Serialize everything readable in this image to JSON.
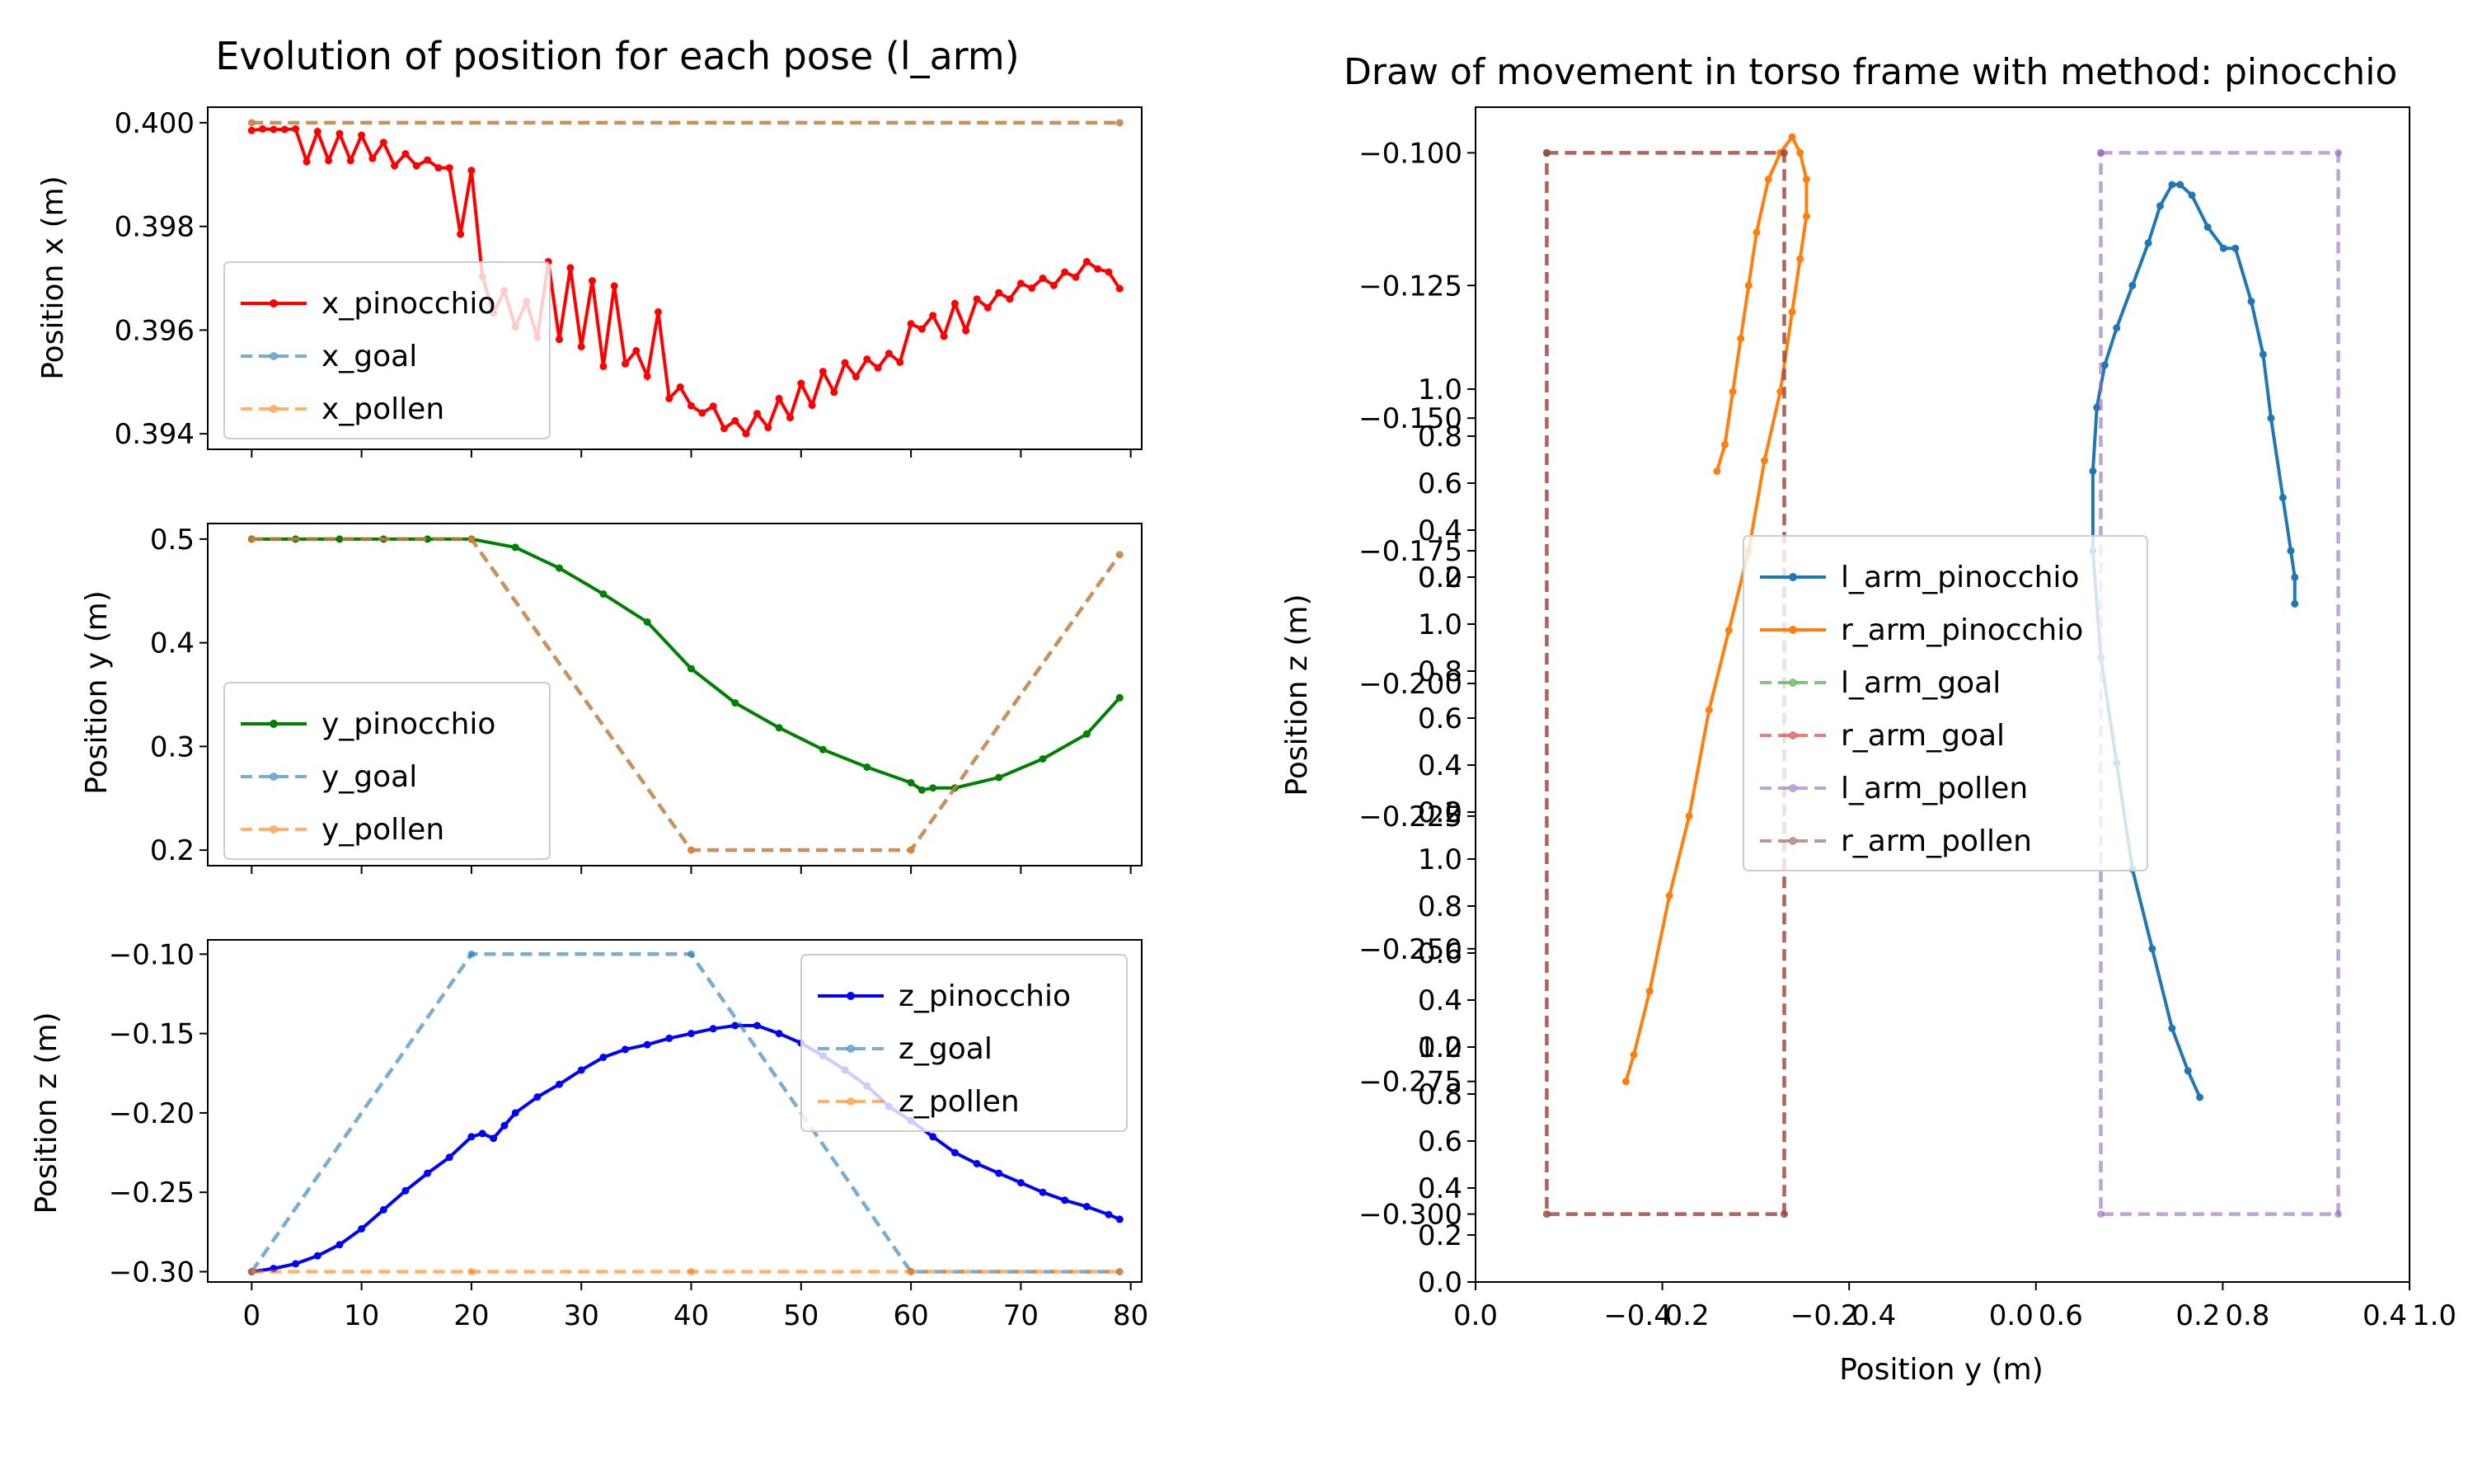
{
  "chart_data": [
    {
      "type": "line",
      "title": "Evolution of position for each pose (l_arm)",
      "xlabel": "",
      "ylabel": "Position x (m)",
      "xlim": [
        -4,
        81
      ],
      "ylim": [
        0.3937,
        0.4003
      ],
      "xticks": [],
      "yticks": [
        {
          "v": 0.4,
          "label": "0.400"
        },
        {
          "v": 0.398,
          "label": "0.398"
        },
        {
          "v": 0.396,
          "label": "0.396"
        },
        {
          "v": 0.394,
          "label": "0.394"
        }
      ],
      "legend": {
        "position": "center-left"
      },
      "series": [
        {
          "name": "x_pinocchio",
          "color": "#ff0000",
          "style": "solid",
          "x": [
            0,
            1,
            2,
            3,
            4,
            5,
            6,
            7,
            8,
            9,
            10,
            11,
            12,
            13,
            14,
            15,
            16,
            17,
            18,
            19,
            20,
            21,
            22,
            23,
            24,
            25,
            26,
            27,
            28,
            29,
            30,
            31,
            32,
            33,
            34,
            35,
            36,
            37,
            38,
            39,
            40,
            41,
            42,
            43,
            44,
            45,
            46,
            47,
            48,
            49,
            50,
            51,
            52,
            53,
            54,
            55,
            56,
            57,
            58,
            59,
            60,
            61,
            62,
            63,
            64,
            65,
            66,
            67,
            68,
            69,
            70,
            71,
            72,
            73,
            74,
            75,
            76,
            77,
            78,
            79
          ],
          "y": [
            0.39985,
            0.39988,
            0.39987,
            0.39987,
            0.39988,
            0.39925,
            0.39983,
            0.39927,
            0.39979,
            0.39927,
            0.39976,
            0.39931,
            0.39962,
            0.39917,
            0.3994,
            0.39917,
            0.39928,
            0.39913,
            0.39913,
            0.39785,
            0.39908,
            0.39703,
            0.39633,
            0.39676,
            0.39606,
            0.39655,
            0.39586,
            0.39732,
            0.39582,
            0.3972,
            0.39568,
            0.39695,
            0.3953,
            0.39685,
            0.39535,
            0.3956,
            0.39511,
            0.39635,
            0.39468,
            0.3949,
            0.39454,
            0.3944,
            0.39453,
            0.3941,
            0.39425,
            0.394,
            0.39439,
            0.39412,
            0.39468,
            0.39431,
            0.39497,
            0.39455,
            0.3952,
            0.3948,
            0.39537,
            0.3951,
            0.39544,
            0.39527,
            0.39555,
            0.39538,
            0.39612,
            0.39602,
            0.39628,
            0.39588,
            0.39651,
            0.39599,
            0.3966,
            0.39643,
            0.39672,
            0.3966,
            0.3969,
            0.39681,
            0.397,
            0.39686,
            0.39712,
            0.39702,
            0.39732,
            0.39718,
            0.39712,
            0.3968
          ]
        },
        {
          "name": "x_goal",
          "color": "#1f77b4",
          "style": "dashed",
          "x": [
            0,
            79
          ],
          "y": [
            0.4,
            0.4
          ]
        },
        {
          "name": "x_pollen",
          "color": "#ff7f0e",
          "style": "dashed",
          "x": [
            0,
            79
          ],
          "y": [
            0.4,
            0.4
          ]
        }
      ]
    },
    {
      "type": "line",
      "title": "",
      "xlabel": "",
      "ylabel": "Position y (m)",
      "xlim": [
        -4,
        81
      ],
      "ylim": [
        0.185,
        0.515
      ],
      "xticks": [],
      "yticks": [
        {
          "v": 0.5,
          "label": "0.5"
        },
        {
          "v": 0.4,
          "label": "0.4"
        },
        {
          "v": 0.3,
          "label": "0.3"
        },
        {
          "v": 0.2,
          "label": "0.2"
        }
      ],
      "legend": {
        "position": "lower-left"
      },
      "series": [
        {
          "name": "y_pinocchio",
          "color": "#008000",
          "style": "solid",
          "x": [
            0,
            4,
            8,
            12,
            16,
            20,
            24,
            28,
            32,
            36,
            40,
            44,
            48,
            52,
            56,
            60,
            61,
            62,
            64,
            68,
            72,
            76,
            79
          ],
          "y": [
            0.5,
            0.5,
            0.5,
            0.5,
            0.5,
            0.5,
            0.492,
            0.472,
            0.447,
            0.42,
            0.375,
            0.342,
            0.318,
            0.297,
            0.28,
            0.265,
            0.258,
            0.26,
            0.26,
            0.27,
            0.288,
            0.312,
            0.347
          ]
        },
        {
          "name": "y_goal",
          "color": "#1f77b4",
          "style": "dashed",
          "x": [
            0,
            20,
            40,
            60,
            79
          ],
          "y": [
            0.5,
            0.5,
            0.2,
            0.2,
            0.485
          ]
        },
        {
          "name": "y_pollen",
          "color": "#ff7f0e",
          "style": "dashed",
          "x": [
            0,
            20,
            40,
            60,
            79
          ],
          "y": [
            0.5,
            0.5,
            0.2,
            0.2,
            0.485
          ]
        }
      ]
    },
    {
      "type": "line",
      "title": "",
      "xlabel": "",
      "ylabel": "Position z (m)",
      "xlim": [
        -4,
        81
      ],
      "ylim": [
        -0.3065,
        -0.091
      ],
      "xticks": [
        {
          "v": 0,
          "label": "0"
        },
        {
          "v": 10,
          "label": "10"
        },
        {
          "v": 20,
          "label": "20"
        },
        {
          "v": 30,
          "label": "30"
        },
        {
          "v": 40,
          "label": "40"
        },
        {
          "v": 50,
          "label": "50"
        },
        {
          "v": 60,
          "label": "60"
        },
        {
          "v": 70,
          "label": "70"
        },
        {
          "v": 80,
          "label": "80"
        }
      ],
      "yticks": [
        {
          "v": -0.1,
          "label": "−0.10"
        },
        {
          "v": -0.15,
          "label": "−0.15"
        },
        {
          "v": -0.2,
          "label": "−0.20"
        },
        {
          "v": -0.25,
          "label": "−0.25"
        },
        {
          "v": -0.3,
          "label": "−0.30"
        }
      ],
      "legend": {
        "position": "upper-right"
      },
      "series": [
        {
          "name": "z_pinocchio",
          "color": "#0000ff",
          "style": "solid",
          "x": [
            0,
            2,
            4,
            6,
            8,
            10,
            12,
            14,
            16,
            18,
            20,
            21,
            22,
            23,
            24,
            26,
            28,
            30,
            32,
            34,
            36,
            38,
            40,
            42,
            44,
            46,
            48,
            50,
            52,
            54,
            56,
            58,
            60,
            62,
            64,
            66,
            68,
            70,
            72,
            74,
            76,
            78,
            79
          ],
          "y": [
            -0.3,
            -0.298,
            -0.295,
            -0.29,
            -0.283,
            -0.273,
            -0.261,
            -0.249,
            -0.238,
            -0.228,
            -0.215,
            -0.213,
            -0.216,
            -0.208,
            -0.2,
            -0.19,
            -0.182,
            -0.173,
            -0.165,
            -0.16,
            -0.157,
            -0.153,
            -0.15,
            -0.147,
            -0.145,
            -0.145,
            -0.15,
            -0.156,
            -0.164,
            -0.173,
            -0.183,
            -0.196,
            -0.205,
            -0.215,
            -0.225,
            -0.232,
            -0.238,
            -0.244,
            -0.25,
            -0.255,
            -0.259,
            -0.264,
            -0.267
          ]
        },
        {
          "name": "z_goal",
          "color": "#1f77b4",
          "style": "dashed",
          "x": [
            0,
            20,
            40,
            60,
            79
          ],
          "y": [
            -0.3,
            -0.1,
            -0.1,
            -0.3,
            -0.3
          ]
        },
        {
          "name": "z_pollen",
          "color": "#ff7f0e",
          "style": "dashed",
          "x": [
            0,
            20,
            40,
            60,
            79
          ],
          "y": [
            -0.3,
            -0.3,
            -0.3,
            -0.3,
            -0.3
          ]
        }
      ]
    },
    {
      "type": "line",
      "title": "Draw of movement in torso frame with method: pinocchio",
      "xlabel": "Position y (m)",
      "ylabel": "Position z (m)",
      "xlim": [
        -0.59,
        0.59
      ],
      "ylim": [
        -0.3128,
        -0.0914
      ],
      "xticks": [
        {
          "u": 0.0,
          "label": "0.0"
        },
        {
          "u": 0.2,
          "label": "−0.4"
        },
        {
          "u": 0.2,
          "label": "0.2"
        },
        {
          "u": 0.4,
          "label": "−0.2"
        },
        {
          "u": 0.4,
          "label": "0.4"
        },
        {
          "u": 0.6,
          "label": "0.0"
        },
        {
          "u": 0.6,
          "label": "0.6"
        },
        {
          "u": 0.8,
          "label": "0.2"
        },
        {
          "u": 0.8,
          "label": "0.8"
        },
        {
          "u": 1.0,
          "label": "0.4"
        },
        {
          "u": 1.0,
          "label": "1.0"
        }
      ],
      "yticks": [
        {
          "v": -0.1,
          "label": "−0.100"
        },
        {
          "v": -0.125,
          "label": "−0.125"
        },
        {
          "v": -0.15,
          "label": "−0.150"
        },
        {
          "v": -0.175,
          "label": "−0.175"
        },
        {
          "v": -0.2,
          "label": "−0.200"
        },
        {
          "v": -0.225,
          "label": "−0.225"
        },
        {
          "v": -0.25,
          "label": "−0.250"
        },
        {
          "v": -0.275,
          "label": "−0.275"
        },
        {
          "v": -0.3,
          "label": "−0.300"
        }
      ],
      "overlay_yticks": [
        {
          "u": 0.0,
          "label": "0.0"
        },
        {
          "u": 0.2,
          "label": "0.2"
        },
        {
          "u": 0.4,
          "label": "0.4"
        },
        {
          "u": 0.6,
          "label": "0.6"
        },
        {
          "u": 0.8,
          "label": "0.8"
        },
        {
          "u": 1.0,
          "label": "1.0"
        },
        {
          "u": 1.2,
          "label": "0.2"
        },
        {
          "u": 1.4,
          "label": "0.4"
        },
        {
          "u": 1.6,
          "label": "0.6"
        },
        {
          "u": 1.8,
          "label": "0.8"
        },
        {
          "u": 2.0,
          "label": "1.0"
        },
        {
          "u": 2.0,
          "label": "0.0"
        },
        {
          "u": 2.2,
          "label": "0.2"
        },
        {
          "u": 2.4,
          "label": "0.4"
        },
        {
          "u": 2.6,
          "label": "0.6"
        },
        {
          "u": 2.8,
          "label": "0.8"
        },
        {
          "u": 3.0,
          "label": "1.0"
        },
        {
          "u": 3.2,
          "label": "0.0"
        },
        {
          "u": 3.4,
          "label": "0.2"
        },
        {
          "u": 3.6,
          "label": "0.4"
        },
        {
          "u": 3.8,
          "label": "0.6"
        },
        {
          "u": 4.0,
          "label": "0.8"
        },
        {
          "u": 4.2,
          "label": "1.0"
        }
      ],
      "legend": {
        "position": "center"
      },
      "series": [
        {
          "name": "l_arm_pinocchio",
          "color": "#1f77b4",
          "style": "solid",
          "x": [
            0.325,
            0.31,
            0.29,
            0.265,
            0.24,
            0.22,
            0.2,
            0.19,
            0.19,
            0.195,
            0.205,
            0.22,
            0.24,
            0.26,
            0.275,
            0.29,
            0.3,
            0.315,
            0.335,
            0.355,
            0.37,
            0.39,
            0.405,
            0.415,
            0.43,
            0.44,
            0.445,
            0.445
          ],
          "y": [
            -0.278,
            -0.273,
            -0.265,
            -0.25,
            -0.235,
            -0.215,
            -0.195,
            -0.175,
            -0.16,
            -0.148,
            -0.14,
            -0.133,
            -0.125,
            -0.117,
            -0.11,
            -0.106,
            -0.106,
            -0.108,
            -0.114,
            -0.118,
            -0.118,
            -0.128,
            -0.138,
            -0.15,
            -0.165,
            -0.175,
            -0.18,
            -0.185
          ]
        },
        {
          "name": "r_arm_pinocchio",
          "color": "#ff7f0e",
          "style": "solid",
          "x": [
            -0.4,
            -0.39,
            -0.37,
            -0.345,
            -0.32,
            -0.295,
            -0.27,
            -0.245,
            -0.225,
            -0.205,
            -0.19,
            -0.18,
            -0.172,
            -0.172,
            -0.18,
            -0.19,
            -0.205,
            -0.22,
            -0.235,
            -0.245,
            -0.255,
            -0.265,
            -0.275,
            -0.285
          ],
          "y": [
            -0.275,
            -0.27,
            -0.258,
            -0.24,
            -0.225,
            -0.205,
            -0.19,
            -0.175,
            -0.158,
            -0.145,
            -0.13,
            -0.12,
            -0.112,
            -0.105,
            -0.1,
            -0.097,
            -0.1,
            -0.105,
            -0.115,
            -0.125,
            -0.135,
            -0.145,
            -0.155,
            -0.16
          ]
        },
        {
          "name": "l_arm_goal",
          "color": "#2ca02c",
          "style": "dashed",
          "x": [],
          "y": []
        },
        {
          "name": "r_arm_goal",
          "color": "#d62728",
          "style": "dashed",
          "x": [
            -0.5,
            -0.2,
            -0.2,
            -0.5,
            -0.5
          ],
          "y": [
            -0.1,
            -0.1,
            -0.3,
            -0.3,
            -0.1
          ]
        },
        {
          "name": "l_arm_pollen",
          "color": "#9467bd",
          "style": "dashed",
          "x": [
            0.2,
            0.5,
            0.5,
            0.2,
            0.2
          ],
          "y": [
            -0.1,
            -0.1,
            -0.3,
            -0.3,
            -0.1
          ]
        },
        {
          "name": "r_arm_pollen",
          "color": "#8c564b",
          "style": "dashed",
          "x": [
            -0.5,
            -0.2,
            -0.2,
            -0.5,
            -0.5
          ],
          "y": [
            -0.1,
            -0.1,
            -0.3,
            -0.3,
            -0.1
          ]
        }
      ]
    }
  ]
}
